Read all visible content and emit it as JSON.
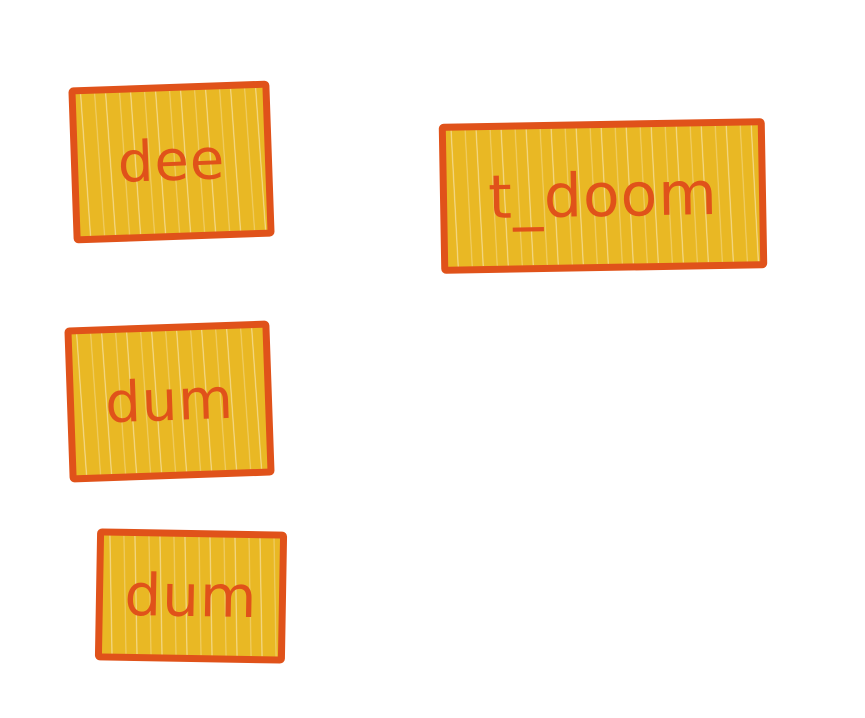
{
  "colors": {
    "fill": "#E9B824",
    "outline": "#E0521A",
    "background": "#FFFFFF"
  },
  "boxes": [
    {
      "label": "dee"
    },
    {
      "label": "t_doom"
    },
    {
      "label": "dum"
    },
    {
      "label": "dum"
    }
  ]
}
